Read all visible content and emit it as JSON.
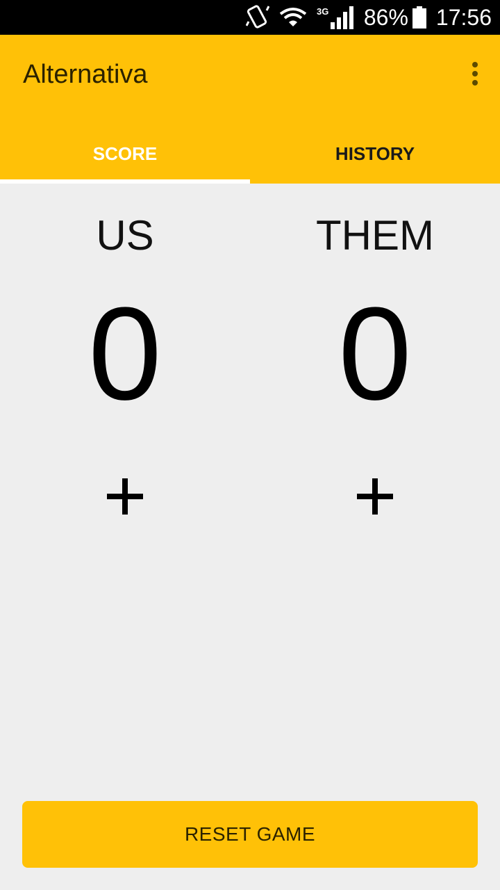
{
  "status_bar": {
    "icons": [
      "vibrate-icon",
      "wifi-icon",
      "signal-3g-icon",
      "battery-icon"
    ],
    "network_label": "3G",
    "battery": "86%",
    "time": "17:56"
  },
  "app_bar": {
    "title": "Alternativa",
    "overflow_icon": "more-vert-icon",
    "background_color": "#ffc107"
  },
  "tabs": [
    {
      "label": "SCORE",
      "selected": true
    },
    {
      "label": "HISTORY",
      "selected": false
    }
  ],
  "teams": [
    {
      "name": "US",
      "score": "0",
      "add_icon": "plus-icon"
    },
    {
      "name": "THEM",
      "score": "0",
      "add_icon": "plus-icon"
    }
  ],
  "actions": {
    "reset_label": "RESET GAME"
  }
}
